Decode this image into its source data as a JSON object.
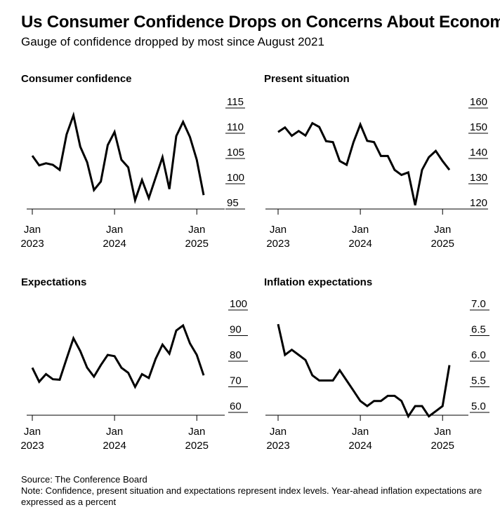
{
  "title": "Us Consumer Confidence Drops on Concerns About Economy",
  "subtitle": "Gauge of confidence dropped by most since August 2021",
  "source": "Source: The Conference Board",
  "note": "Note: Confidence, present situation and expectations represent index levels. Year-ahead inflation expectations are expressed as a percent",
  "chart_data": [
    {
      "type": "line",
      "title": "Consumer confidence",
      "x_start": "2023-01",
      "x_labels": [
        {
          "month": "Jan",
          "year": "2023"
        },
        {
          "month": "Jan",
          "year": "2024"
        },
        {
          "month": "Jan",
          "year": "2025"
        }
      ],
      "yticks": [
        "115",
        "110",
        "105",
        "100",
        "95"
      ],
      "ylim": [
        95,
        115
      ],
      "values": [
        104.3,
        102.4,
        102.8,
        102.5,
        101.5,
        108.5,
        112.3,
        106.1,
        103.0,
        97.5,
        99.2,
        106.4,
        109.0,
        103.5,
        102.0,
        95.5,
        99.5,
        95.9,
        100.0,
        104.0,
        97.7,
        108.2,
        111.0,
        108.0,
        103.5,
        96.5
      ]
    },
    {
      "type": "line",
      "title": "Present situation",
      "x_start": "2023-01",
      "x_labels": [
        {
          "month": "Jan",
          "year": "2023"
        },
        {
          "month": "Jan",
          "year": "2024"
        },
        {
          "month": "Jan",
          "year": "2025"
        }
      ],
      "yticks": [
        "160",
        "150",
        "140",
        "130",
        "120"
      ],
      "ylim": [
        120,
        160
      ],
      "values": [
        148.0,
        149.8,
        146.5,
        148.4,
        146.6,
        151.5,
        150.0,
        144.4,
        144.0,
        136.5,
        135.0,
        144.0,
        151.0,
        144.5,
        144.0,
        138.5,
        138.5,
        133.0,
        131.0,
        132.0,
        119.0,
        133.0,
        138.0,
        140.5,
        136.5,
        133.0
      ]
    },
    {
      "type": "line",
      "title": "Expectations",
      "x_start": "2023-01",
      "x_labels": [
        {
          "month": "Jan",
          "year": "2023"
        },
        {
          "month": "Jan",
          "year": "2024"
        },
        {
          "month": "Jan",
          "year": "2025"
        }
      ],
      "yticks": [
        "100",
        "90",
        "80",
        "70",
        "60"
      ],
      "ylim": [
        60,
        100
      ],
      "values": [
        75.0,
        69.5,
        72.5,
        70.5,
        70.3,
        78.5,
        86.5,
        81.5,
        75.0,
        71.5,
        76.0,
        80.0,
        79.5,
        75.0,
        73.0,
        67.5,
        72.5,
        71.0,
        78.5,
        84.0,
        80.5,
        89.5,
        91.5,
        84.5,
        80.0,
        72.0
      ]
    },
    {
      "type": "line",
      "title": "Inflation expectations",
      "x_start": "2023-01",
      "x_labels": [
        {
          "month": "Jan",
          "year": "2023"
        },
        {
          "month": "Jan",
          "year": "2024"
        },
        {
          "month": "Jan",
          "year": "2025"
        }
      ],
      "yticks": [
        "7.0",
        "6.5",
        "6.0",
        "5.5",
        "5.0"
      ],
      "ylim": [
        5.0,
        7.0
      ],
      "values": [
        6.6,
        6.0,
        6.1,
        6.0,
        5.9,
        5.6,
        5.5,
        5.5,
        5.5,
        5.7,
        5.5,
        5.3,
        5.1,
        5.0,
        5.1,
        5.1,
        5.2,
        5.2,
        5.1,
        4.8,
        5.0,
        5.0,
        4.8,
        4.9,
        5.0,
        5.8
      ]
    }
  ]
}
